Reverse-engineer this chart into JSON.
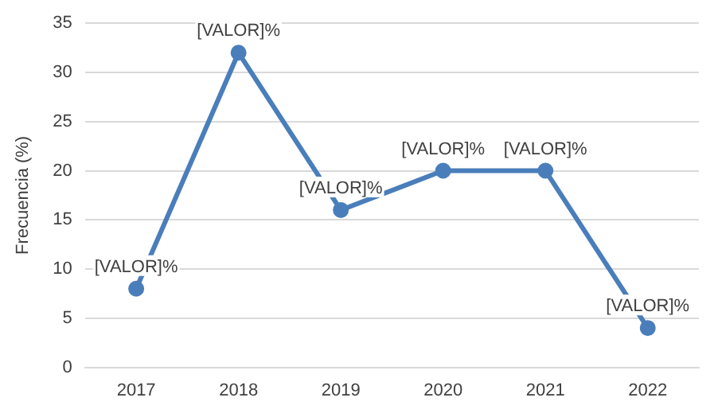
{
  "chart_data": {
    "type": "line",
    "ylabel": "Frecuencia (%)",
    "categories": [
      "2017",
      "2018",
      "2019",
      "2020",
      "2021",
      "2022"
    ],
    "series": [
      {
        "color": "#4a7ebb",
        "values": [
          8,
          32,
          16,
          20,
          20,
          4
        ],
        "value_labels": [
          "[VALOR]%",
          "[VALOR]%",
          "[VALOR]%",
          "[VALOR]%",
          "[VALOR]%",
          "[VALOR]%"
        ]
      }
    ],
    "ylim": [
      0,
      35
    ],
    "yticks": [
      0,
      5,
      10,
      15,
      20,
      25,
      30,
      35
    ],
    "grid": "y",
    "legend": false,
    "marker": "circle",
    "line_style": "solid"
  }
}
